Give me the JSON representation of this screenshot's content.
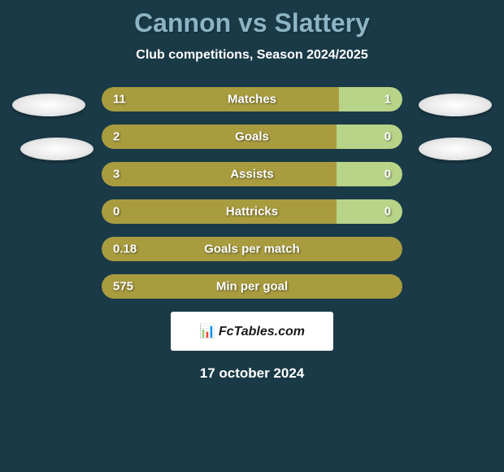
{
  "title": "Cannon vs Slattery",
  "subtitle": "Club competitions, Season 2024/2025",
  "background_color": "#1a3a47",
  "title_color": "#8db4c4",
  "text_color": "#ffffff",
  "bar_left_color": "#a89c3f",
  "bar_right_color": "#b8d488",
  "bar_bg_color": "#2a4a57",
  "stats": [
    {
      "label": "Matches",
      "left_value": "11",
      "right_value": "1",
      "left_pct": 79,
      "right_pct": 21,
      "has_right_bar": true
    },
    {
      "label": "Goals",
      "left_value": "2",
      "right_value": "0",
      "left_pct": 78,
      "right_pct": 22,
      "has_right_bar": true
    },
    {
      "label": "Assists",
      "left_value": "3",
      "right_value": "0",
      "left_pct": 78,
      "right_pct": 22,
      "has_right_bar": true
    },
    {
      "label": "Hattricks",
      "left_value": "0",
      "right_value": "0",
      "left_pct": 78,
      "right_pct": 22,
      "has_right_bar": true
    },
    {
      "label": "Goals per match",
      "left_value": "0.18",
      "right_value": "",
      "left_pct": 100,
      "right_pct": 0,
      "has_right_bar": false
    },
    {
      "label": "Min per goal",
      "left_value": "575",
      "right_value": "",
      "left_pct": 100,
      "right_pct": 0,
      "has_right_bar": false
    }
  ],
  "logo_text": "FcTables.com",
  "date": "17 october 2024",
  "badge_color": "#ffffff"
}
